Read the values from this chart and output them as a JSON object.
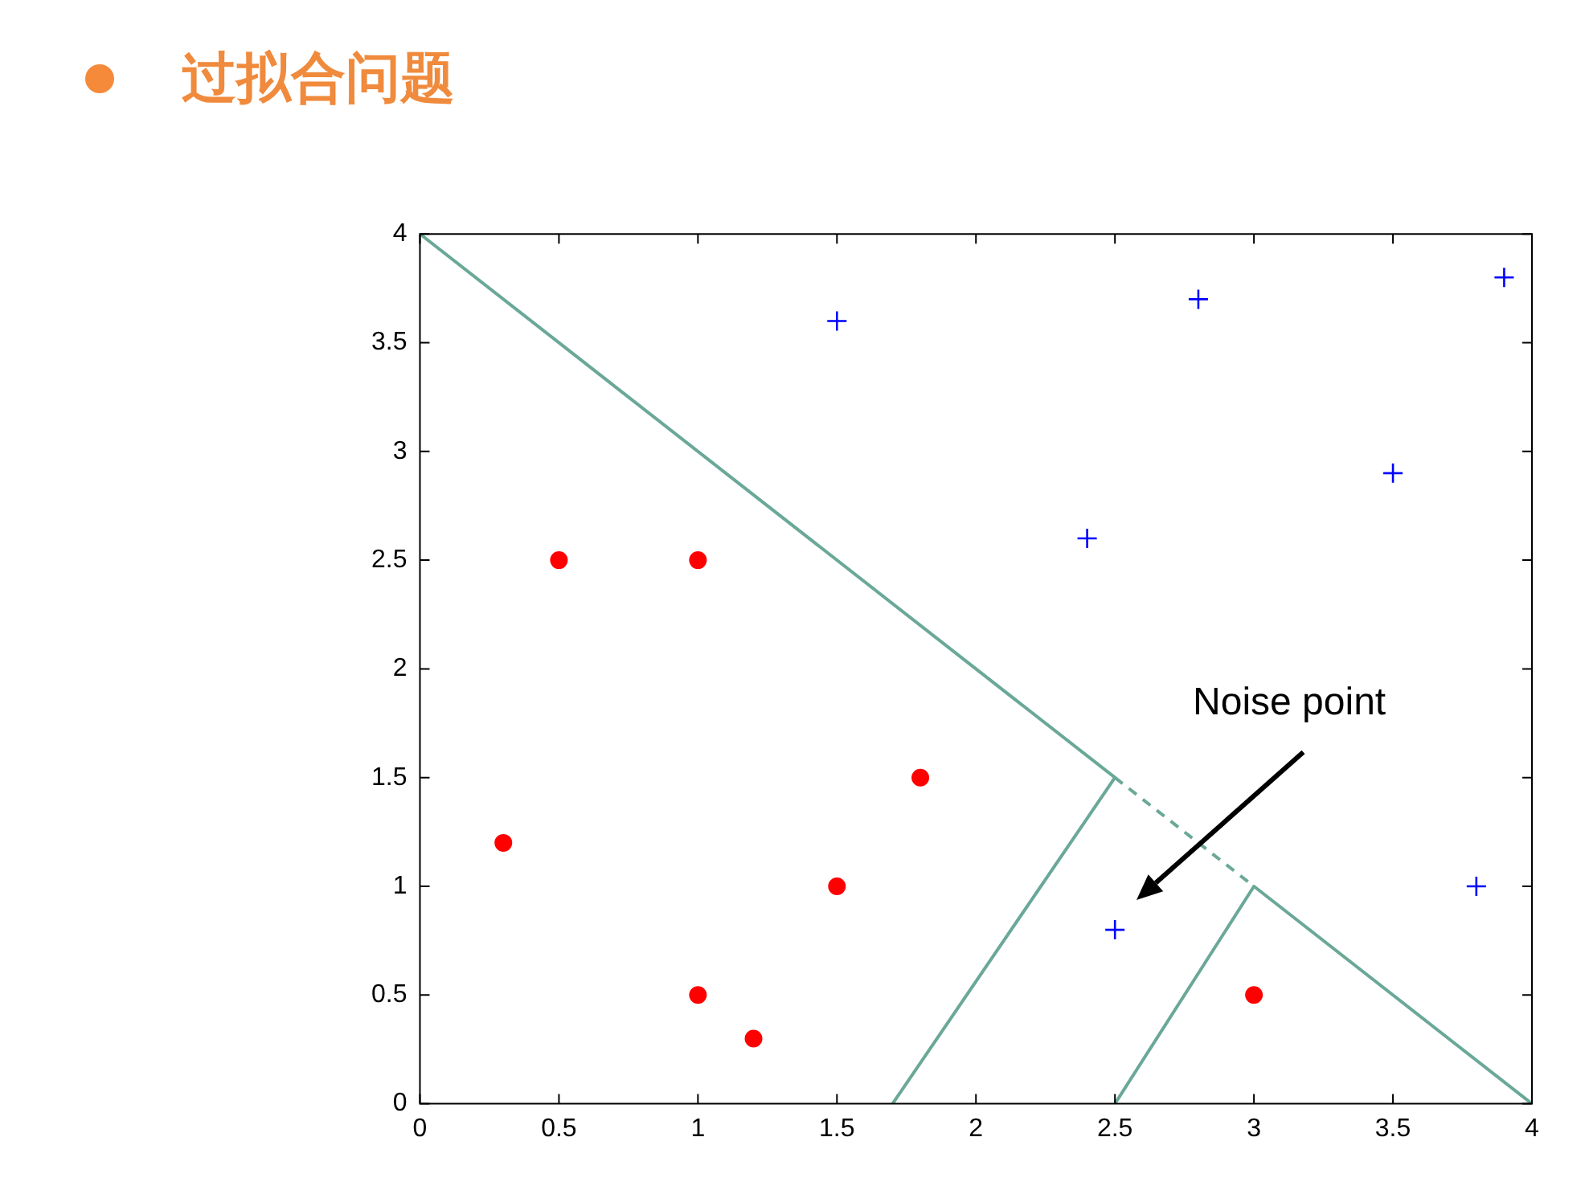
{
  "chart_data": {
    "type": "scatter",
    "title": "过拟合问题",
    "series": [
      {
        "color": "#ff0000",
        "marker": "circle",
        "x": [
          0.5,
          1,
          0.3,
          1.8,
          1.5,
          1,
          1.2,
          3
        ],
        "values": [
          2.5,
          2.5,
          1.2,
          1.5,
          1.0,
          0.5,
          0.3,
          0.5
        ]
      },
      {
        "color": "#0000ff",
        "marker": "cross",
        "x": [
          1.5,
          2.8,
          3.9,
          2.4,
          3.5,
          3.8,
          2.5
        ],
        "values": [
          3.6,
          3.7,
          3.8,
          2.6,
          2.9,
          1.0,
          0.8
        ]
      },
      {
        "type": "line",
        "color": "#6aa898",
        "marker": "none",
        "line_style": "solid",
        "x": [
          0,
          2.5,
          1.7
        ],
        "values": [
          4,
          1.5,
          0
        ]
      },
      {
        "type": "line",
        "color": "#6aa898",
        "marker": "none",
        "line_style": "dashed",
        "x": [
          2.5,
          3
        ],
        "values": [
          1.5,
          1
        ]
      },
      {
        "type": "line",
        "color": "#6aa898",
        "marker": "none",
        "line_style": "solid",
        "x": [
          2.5,
          3,
          4
        ],
        "values": [
          0,
          1,
          0
        ]
      }
    ],
    "xlim": [
      0,
      4
    ],
    "ylim": [
      0,
      4
    ],
    "xticks": [
      0,
      0.5,
      1,
      1.5,
      2,
      2.5,
      3,
      3.5,
      4
    ],
    "yticks": [
      0,
      0.5,
      1,
      1.5,
      2,
      2.5,
      3,
      3.5,
      4
    ],
    "grid": false,
    "legend": false,
    "annotations": [
      "Noise point"
    ]
  }
}
